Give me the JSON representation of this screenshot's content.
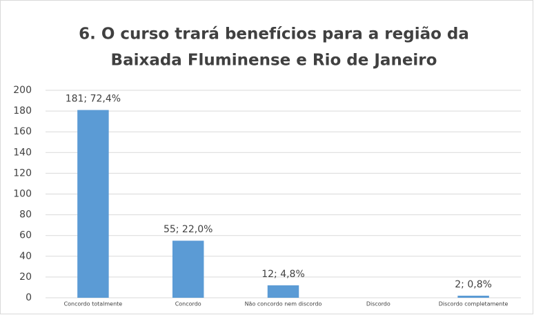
{
  "chart_data": {
    "type": "bar",
    "title": [
      "6. O curso trará benefícios para a região da",
      "Baixada Fluminense e Rio de Janeiro"
    ],
    "categories": [
      "Concordo totalmente",
      "Concordo",
      "Não concordo nem discordo",
      "Discordo",
      "Discordo completamente"
    ],
    "values": [
      181,
      55,
      12,
      0,
      2
    ],
    "value_labels": [
      "181; 72,4%",
      "55; 22,0%",
      "12; 4,8%",
      null,
      "2; 0,8%"
    ],
    "color": "#5b9bd5",
    "ylim": [
      0,
      200
    ],
    "yticks": [
      0,
      20,
      40,
      60,
      80,
      100,
      120,
      140,
      160,
      180,
      200
    ],
    "grid": true
  }
}
